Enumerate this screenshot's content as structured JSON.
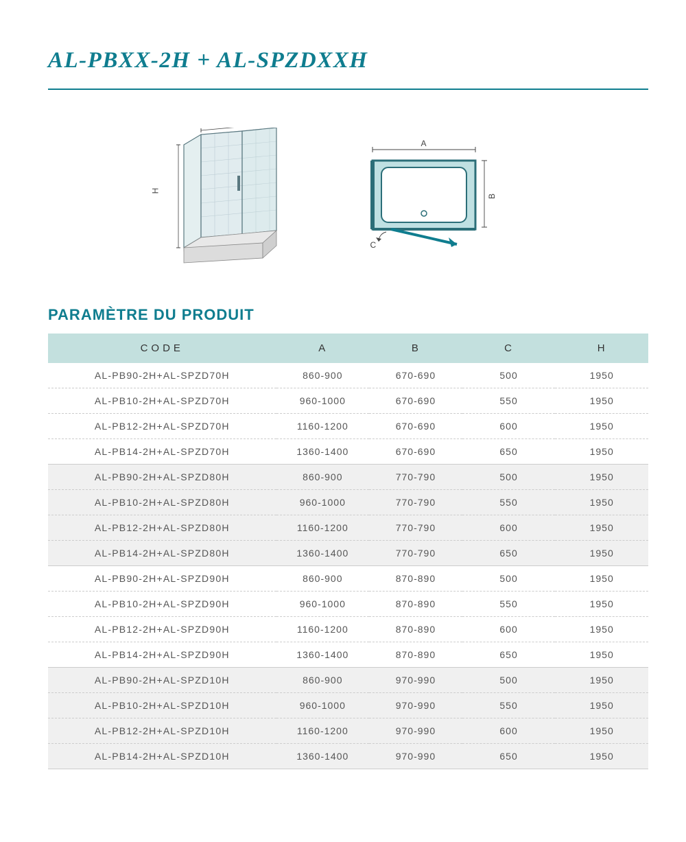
{
  "title": "AL-PBXX-2H + AL-SPZDXXH",
  "section_title": "PARAMÈTRE DU PRODUIT",
  "colors": {
    "brand": "#0f7d8f",
    "header_bg": "#c3e0de",
    "row_alt_bg": "#f0f0f0",
    "row_bg": "#ffffff",
    "text": "#555555",
    "divider_dash": "#cccccc"
  },
  "diagram_labels": {
    "h": "H",
    "a": "A",
    "b": "B",
    "c": "C"
  },
  "columns": [
    "CODE",
    "A",
    "B",
    "C",
    "H"
  ],
  "rows": [
    {
      "code": "AL-PB90-2H+AL-SPZD70H",
      "a": "860-900",
      "b": "670-690",
      "c": "500",
      "h": "1950",
      "group": 0
    },
    {
      "code": "AL-PB10-2H+AL-SPZD70H",
      "a": "960-1000",
      "b": "670-690",
      "c": "550",
      "h": "1950",
      "group": 0
    },
    {
      "code": "AL-PB12-2H+AL-SPZD70H",
      "a": "1160-1200",
      "b": "670-690",
      "c": "600",
      "h": "1950",
      "group": 0
    },
    {
      "code": "AL-PB14-2H+AL-SPZD70H",
      "a": "1360-1400",
      "b": "670-690",
      "c": "650",
      "h": "1950",
      "group": 0
    },
    {
      "code": "AL-PB90-2H+AL-SPZD80H",
      "a": "860-900",
      "b": "770-790",
      "c": "500",
      "h": "1950",
      "group": 1
    },
    {
      "code": "AL-PB10-2H+AL-SPZD80H",
      "a": "960-1000",
      "b": "770-790",
      "c": "550",
      "h": "1950",
      "group": 1
    },
    {
      "code": "AL-PB12-2H+AL-SPZD80H",
      "a": "1160-1200",
      "b": "770-790",
      "c": "600",
      "h": "1950",
      "group": 1
    },
    {
      "code": "AL-PB14-2H+AL-SPZD80H",
      "a": "1360-1400",
      "b": "770-790",
      "c": "650",
      "h": "1950",
      "group": 1
    },
    {
      "code": "AL-PB90-2H+AL-SPZD90H",
      "a": "860-900",
      "b": "870-890",
      "c": "500",
      "h": "1950",
      "group": 2
    },
    {
      "code": "AL-PB10-2H+AL-SPZD90H",
      "a": "960-1000",
      "b": "870-890",
      "c": "550",
      "h": "1950",
      "group": 2
    },
    {
      "code": "AL-PB12-2H+AL-SPZD90H",
      "a": "1160-1200",
      "b": "870-890",
      "c": "600",
      "h": "1950",
      "group": 2
    },
    {
      "code": "AL-PB14-2H+AL-SPZD90H",
      "a": "1360-1400",
      "b": "870-890",
      "c": "650",
      "h": "1950",
      "group": 2
    },
    {
      "code": "AL-PB90-2H+AL-SPZD10H",
      "a": "860-900",
      "b": "970-990",
      "c": "500",
      "h": "1950",
      "group": 3
    },
    {
      "code": "AL-PB10-2H+AL-SPZD10H",
      "a": "960-1000",
      "b": "970-990",
      "c": "550",
      "h": "1950",
      "group": 3
    },
    {
      "code": "AL-PB12-2H+AL-SPZD10H",
      "a": "1160-1200",
      "b": "970-990",
      "c": "600",
      "h": "1950",
      "group": 3
    },
    {
      "code": "AL-PB14-2H+AL-SPZD10H",
      "a": "1360-1400",
      "b": "970-990",
      "c": "650",
      "h": "1950",
      "group": 3
    }
  ]
}
